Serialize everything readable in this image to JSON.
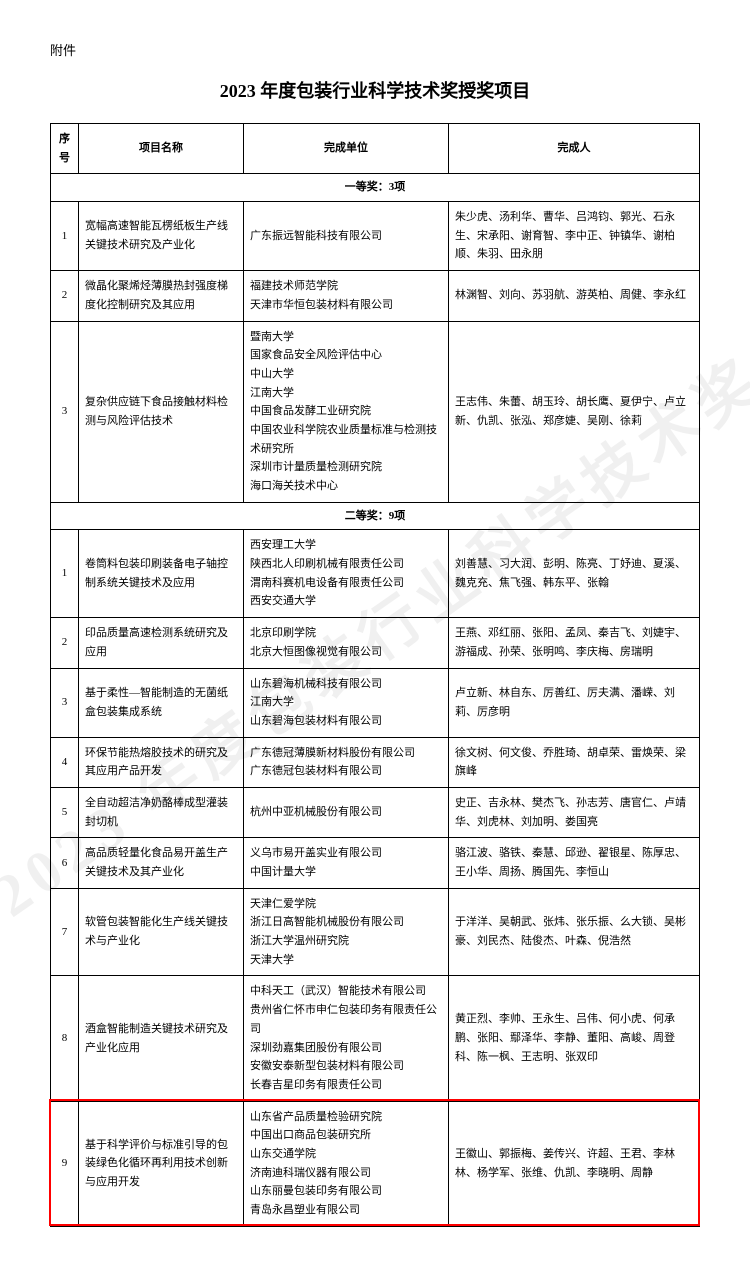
{
  "attachment_label": "附件",
  "title": "2023 年度包装行业科学技术奖授奖项目",
  "watermark_text": "2023 年度包装行业科学技术奖",
  "headers": {
    "idx": "序号",
    "name": "项目名称",
    "unit": "完成单位",
    "people": "完成人"
  },
  "sections": [
    {
      "label": "一等奖：3项",
      "rows": [
        {
          "idx": "1",
          "name": "宽幅高速智能瓦楞纸板生产线关键技术研究及产业化",
          "units": [
            "广东振远智能科技有限公司"
          ],
          "people": "朱少虎、汤利华、曹华、吕鸿钧、郭光、石永生、宋承阳、谢育智、李中正、钟镇华、谢柏顺、朱羽、田永朋"
        },
        {
          "idx": "2",
          "name": "微晶化聚烯烃薄膜热封强度梯度化控制研究及其应用",
          "units": [
            "福建技术师范学院",
            "天津市华恒包装材料有限公司"
          ],
          "people": "林渊智、刘向、苏羽航、游英柏、周健、李永红"
        },
        {
          "idx": "3",
          "name": "复杂供应链下食品接触材料检测与风险评估技术",
          "units": [
            "暨南大学",
            "国家食品安全风险评估中心",
            "中山大学",
            "江南大学",
            "中国食品发酵工业研究院",
            "中国农业科学院农业质量标准与检测技术研究所",
            "深圳市计量质量检测研究院",
            "海口海关技术中心"
          ],
          "people": "王志伟、朱蕾、胡玉玲、胡长鹰、夏伊宁、卢立新、仇凯、张泓、郑彦婕、吴刚、徐莉"
        }
      ]
    },
    {
      "label": "二等奖：9项",
      "rows": [
        {
          "idx": "1",
          "name": "卷筒料包装印刷装备电子轴控制系统关键技术及应用",
          "units": [
            "西安理工大学",
            "陕西北人印刷机械有限责任公司",
            "渭南科赛机电设备有限责任公司",
            "西安交通大学"
          ],
          "people": "刘善慧、习大润、彭明、陈亮、丁妤迪、夏溪、魏克充、焦飞强、韩东平、张翰"
        },
        {
          "idx": "2",
          "name": "印品质量高速检测系统研究及应用",
          "units": [
            "北京印刷学院",
            "北京大恒图像视觉有限公司"
          ],
          "people": "王燕、邓红丽、张阳、孟凤、秦吉飞、刘婕宇、游福成、孙荣、张明鸣、李庆梅、房瑞明"
        },
        {
          "idx": "3",
          "name": "基于柔性—智能制造的无菌纸盒包装集成系统",
          "units": [
            "山东碧海机械科技有限公司",
            "江南大学",
            "山东碧海包装材料有限公司"
          ],
          "people": "卢立新、林自东、厉善红、厉夫满、潘嵘、刘莉、厉彦明"
        },
        {
          "idx": "4",
          "name": "环保节能热熔胶技术的研究及其应用产品开发",
          "units": [
            "广东德冠薄膜新材料股份有限公司",
            "广东德冠包装材料有限公司"
          ],
          "people": "徐文树、何文俊、乔胜琦、胡卓荣、雷焕荣、梁旗峰"
        },
        {
          "idx": "5",
          "name": "全自动超洁净奶酪棒成型灌装封切机",
          "units": [
            "杭州中亚机械股份有限公司"
          ],
          "people": "史正、吉永林、樊杰飞、孙志芳、唐官仁、卢靖华、刘虎林、刘加明、娄国亮"
        },
        {
          "idx": "6",
          "name": "高品质轻量化食品易开盖生产关键技术及其产业化",
          "units": [
            "义乌市易开盖实业有限公司",
            "中国计量大学"
          ],
          "people": "骆江波、骆铁、秦慧、邱逊、翟银星、陈厚忠、王小华、周扬、腾国先、李恒山"
        },
        {
          "idx": "7",
          "name": "软管包装智能化生产线关键技术与产业化",
          "units": [
            "天津仁爱学院",
            "浙江日高智能机械股份有限公司",
            "浙江大学温州研究院",
            "天津大学"
          ],
          "people": "于洋洋、吴朝武、张炜、张乐振、么大锁、吴彬豪、刘民杰、陆俊杰、叶森、倪浩然"
        },
        {
          "idx": "8",
          "name": "酒盒智能制造关键技术研究及产业化应用",
          "units": [
            "中科天工（武汉）智能技术有限公司",
            "贵州省仁怀市申仁包装印务有限责任公司",
            "深圳劲嘉集团股份有限公司",
            "安徽安泰新型包装材料有限公司",
            "长春吉星印务有限责任公司"
          ],
          "people": "黄正烈、李帅、王永生、吕伟、何小虎、何承鹏、张阳、鄢泽华、李静、董阳、高峻、周登科、陈一枫、王志明、张双印"
        },
        {
          "idx": "9",
          "name": "基于科学评价与标准引导的包装绿色化循环再利用技术创新与应用开发",
          "units": [
            "山东省产品质量检验研究院",
            "中国出口商品包装研究所",
            "山东交通学院",
            "济南迪科瑞仪器有限公司",
            "山东丽曼包装印务有限公司",
            "青岛永昌塑业有限公司"
          ],
          "people": "王徽山、郭振梅、姜传兴、许超、王君、李林林、杨学军、张维、仇凯、李晓明、周静",
          "highlight": true
        }
      ]
    }
  ]
}
